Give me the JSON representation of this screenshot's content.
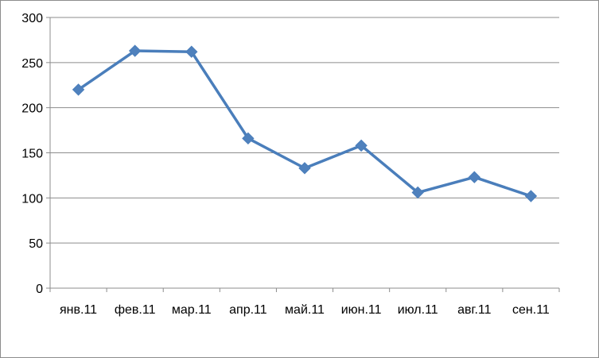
{
  "chart_data": {
    "type": "line",
    "categories": [
      "янв.11",
      "фев.11",
      "мар.11",
      "апр.11",
      "май.11",
      "июн.11",
      "июл.11",
      "авг.11",
      "сен.11"
    ],
    "series": [
      {
        "values": [
          220,
          263,
          262,
          166,
          133,
          158,
          106,
          123,
          102
        ]
      }
    ],
    "ylim": [
      0,
      300
    ],
    "yticks": [
      0,
      50,
      100,
      150,
      200,
      250,
      300
    ],
    "grid": true,
    "legend": "none",
    "title": "",
    "xlabel": "",
    "ylabel": "",
    "colors": {
      "line": "#4a7ebb",
      "marker": "#4f81bd",
      "grid": "#8c8c8c",
      "axis": "#8c8c8c"
    }
  }
}
